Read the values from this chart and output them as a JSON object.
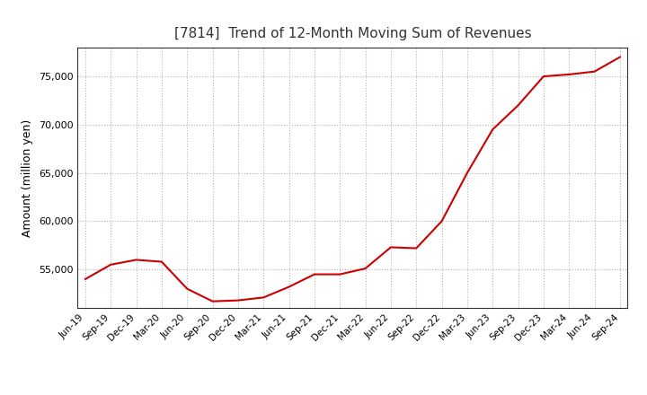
{
  "title": "[7814]  Trend of 12-Month Moving Sum of Revenues",
  "ylabel": "Amount (million yen)",
  "line_color": "#cc0000",
  "background_color": "#ffffff",
  "grid_color": "#aaaaaa",
  "title_color": "#333333",
  "x_labels": [
    "Jun-19",
    "Sep-19",
    "Dec-19",
    "Mar-20",
    "Jun-20",
    "Sep-20",
    "Dec-20",
    "Mar-21",
    "Jun-21",
    "Sep-21",
    "Dec-21",
    "Mar-22",
    "Jun-22",
    "Sep-22",
    "Dec-22",
    "Mar-23",
    "Jun-23",
    "Sep-23",
    "Dec-23",
    "Mar-24",
    "Jun-24",
    "Sep-24"
  ],
  "values": [
    54000,
    55500,
    56000,
    55800,
    53000,
    51700,
    51800,
    52100,
    53200,
    54500,
    54500,
    55100,
    57300,
    57200,
    60000,
    65000,
    69500,
    72000,
    75000,
    75200,
    75500,
    77000
  ],
  "ylim_min": 51000,
  "ylim_max": 78000,
  "yticks": [
    55000,
    60000,
    65000,
    70000,
    75000
  ]
}
